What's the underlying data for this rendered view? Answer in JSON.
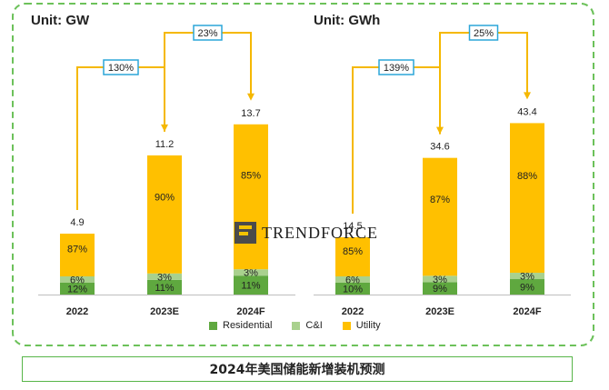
{
  "caption": "2024年美国储能新增装机预测",
  "watermark": "TrendForce",
  "legend": [
    {
      "name": "Residential",
      "color": "#5fa83f"
    },
    {
      "name": "C&I",
      "color": "#a9d18e"
    },
    {
      "name": "Utility",
      "color": "#ffc000"
    }
  ],
  "chart_data": [
    {
      "type": "bar",
      "title": "Unit: GW",
      "categories": [
        "2022",
        "2023E",
        "2024F"
      ],
      "totals": [
        4.9,
        11.2,
        13.7
      ],
      "series": [
        {
          "name": "Residential",
          "shares": [
            "12%",
            "11%",
            "11%"
          ]
        },
        {
          "name": "C&I",
          "shares": [
            "6%",
            "3%",
            "3%"
          ]
        },
        {
          "name": "Utility",
          "shares": [
            "87%",
            "90%",
            "85%"
          ]
        }
      ],
      "growth": [
        {
          "from": "2022",
          "to": "2023E",
          "label": "130%"
        },
        {
          "from": "2023E",
          "to": "2024F",
          "label": "23%"
        }
      ],
      "ylim": [
        0,
        18
      ]
    },
    {
      "type": "bar",
      "title": "Unit: GWh",
      "categories": [
        "2022",
        "2023E",
        "2024F"
      ],
      "totals": [
        14.5,
        34.6,
        43.4
      ],
      "series": [
        {
          "name": "Residential",
          "shares": [
            "10%",
            "9%",
            "9%"
          ]
        },
        {
          "name": "C&I",
          "shares": [
            "6%",
            "3%",
            "3%"
          ]
        },
        {
          "name": "Utility",
          "shares": [
            "85%",
            "87%",
            "88%"
          ]
        }
      ],
      "growth": [
        {
          "from": "2022",
          "to": "2023E",
          "label": "139%"
        },
        {
          "from": "2023E",
          "to": "2024F",
          "label": "25%"
        }
      ],
      "ylim": [
        0,
        58
      ]
    }
  ]
}
